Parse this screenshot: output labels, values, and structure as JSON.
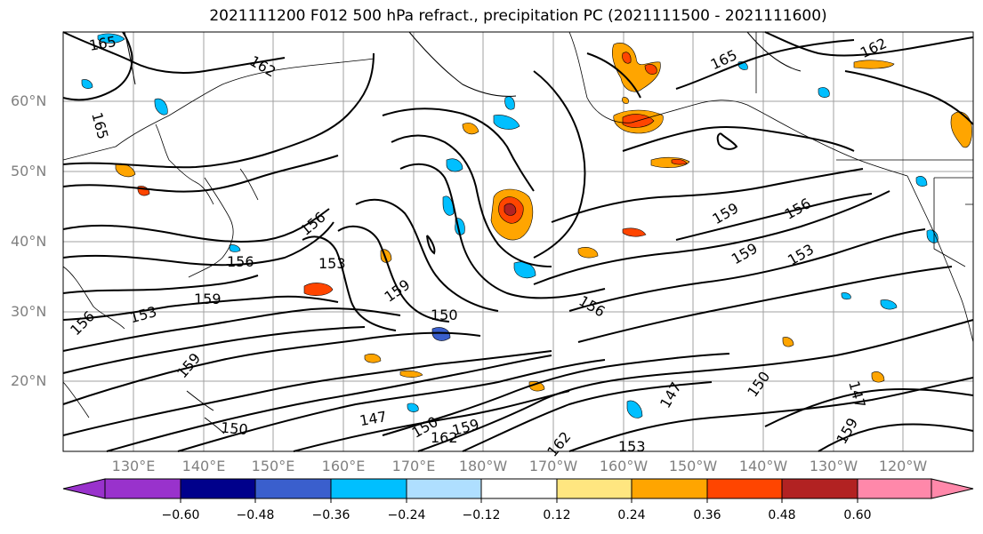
{
  "title": "2021111200 F012 500 hPa refract., precipitation PC (2021111500 - 2021111600)",
  "lat_labels": [
    "60°N",
    "50°N",
    "40°N",
    "30°N",
    "20°N"
  ],
  "lon_labels": [
    "130°E",
    "140°E",
    "150°E",
    "160°E",
    "170°E",
    "180°W",
    "170°W",
    "160°W",
    "150°W",
    "140°W",
    "130°W",
    "120°W"
  ],
  "contour_labels": [
    "165",
    "162",
    "165",
    "165",
    "162",
    "156",
    "159",
    "156",
    "153",
    "159",
    "153",
    "156",
    "159",
    "153",
    "156",
    "159",
    "150",
    "156",
    "159",
    "147",
    "150",
    "159",
    "162",
    "147",
    "150",
    "147",
    "159",
    "150",
    "162",
    "153"
  ],
  "colorbar": {
    "ticks": [
      "−0.60",
      "−0.48",
      "−0.36",
      "−0.24",
      "−0.12",
      "0.12",
      "0.24",
      "0.36",
      "0.48",
      "0.60"
    ],
    "colors": [
      "#9932cc",
      "#00008b",
      "#3a5fcd",
      "#00bfff",
      "#afdfff",
      "#ffffff",
      "#ffe680",
      "#ffa500",
      "#ff4500",
      "#b22222",
      "#ff88aa"
    ]
  },
  "colors": {
    "contour": "#000000",
    "grid": "#a0a0a0",
    "coast": "#000000"
  }
}
